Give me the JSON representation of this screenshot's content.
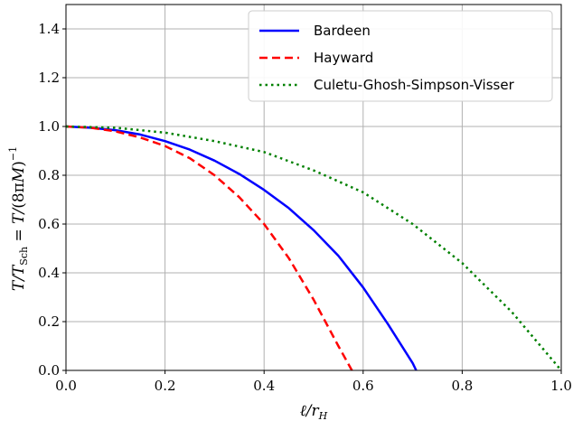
{
  "chart_data": {
    "type": "line",
    "title": "",
    "xlabel": "ℓ/r_H",
    "ylabel": "T/T_Sch = T/(8πM)^−1",
    "xlim": [
      0.0,
      1.0
    ],
    "ylim": [
      0.0,
      1.5
    ],
    "xticks": [
      "0.0",
      "0.2",
      "0.4",
      "0.6",
      "0.8",
      "1.0"
    ],
    "yticks": [
      "0.0",
      "0.2",
      "0.4",
      "0.6",
      "0.8",
      "1.0",
      "1.2",
      "1.4"
    ],
    "xtick_values": [
      0.0,
      0.2,
      0.4,
      0.6,
      0.8,
      1.0
    ],
    "ytick_values": [
      0.0,
      0.2,
      0.4,
      0.6,
      0.8,
      1.0,
      1.2,
      1.4
    ],
    "grid": true,
    "legend_position": "top-right",
    "series": [
      {
        "name": "Bardeen",
        "color": "#0000ff",
        "style": "solid",
        "x": [
          0.0,
          0.05,
          0.1,
          0.15,
          0.2,
          0.25,
          0.3,
          0.35,
          0.4,
          0.45,
          0.5,
          0.55,
          0.6,
          0.65,
          0.7,
          0.7071
        ],
        "y": [
          1.0,
          0.995,
          0.985,
          0.967,
          0.94,
          0.905,
          0.86,
          0.805,
          0.74,
          0.665,
          0.575,
          0.47,
          0.34,
          0.19,
          0.03,
          0.0
        ]
      },
      {
        "name": "Hayward",
        "color": "#ff0000",
        "style": "dashed",
        "x": [
          0.0,
          0.05,
          0.1,
          0.15,
          0.2,
          0.25,
          0.3,
          0.35,
          0.4,
          0.45,
          0.5,
          0.55,
          0.5774
        ],
        "y": [
          1.0,
          0.995,
          0.98,
          0.955,
          0.92,
          0.87,
          0.8,
          0.71,
          0.6,
          0.46,
          0.29,
          0.1,
          0.0
        ]
      },
      {
        "name": "Culetu-Ghosh-Simpson-Visser",
        "color": "#008000",
        "style": "dotted",
        "x": [
          0.0,
          0.1,
          0.2,
          0.3,
          0.4,
          0.5,
          0.6,
          0.7,
          0.8,
          0.9,
          1.0
        ],
        "y": [
          1.0,
          0.995,
          0.975,
          0.94,
          0.895,
          0.82,
          0.73,
          0.6,
          0.44,
          0.24,
          0.0
        ]
      }
    ]
  }
}
